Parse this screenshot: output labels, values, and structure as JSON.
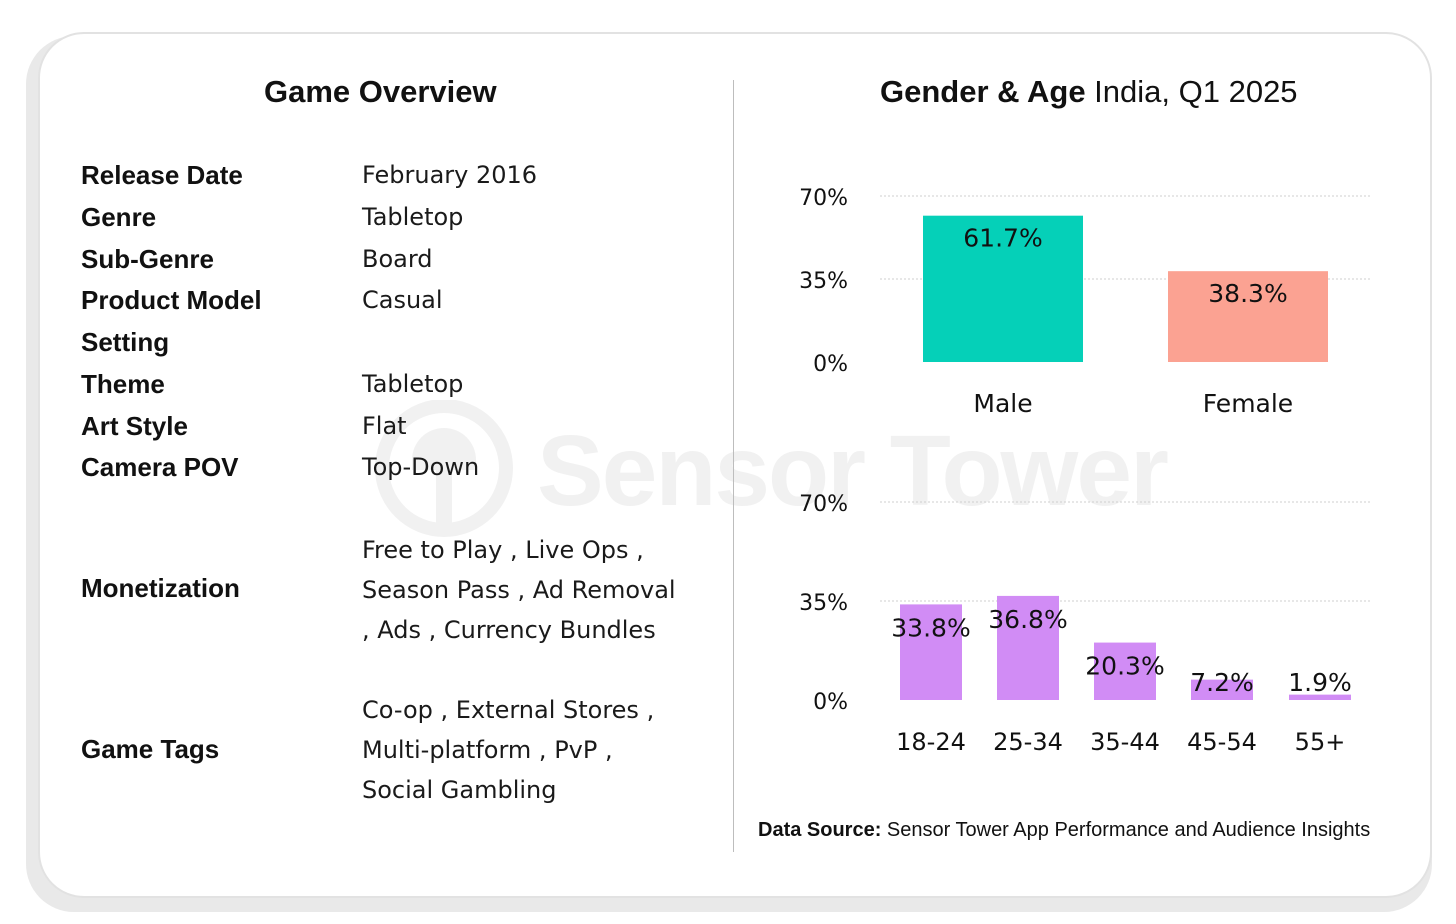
{
  "overview": {
    "title": "Game Overview",
    "rows": [
      {
        "label": "Release Date",
        "value": "February 2016"
      },
      {
        "label": "Genre",
        "value": "Tabletop"
      },
      {
        "label": "Sub-Genre",
        "value": "Board"
      },
      {
        "label": "Product Model",
        "value": "Casual"
      },
      {
        "label": "Setting",
        "value": ""
      },
      {
        "label": "Theme",
        "value": "Tabletop"
      },
      {
        "label": "Art Style",
        "value": "Flat"
      },
      {
        "label": "Camera POV",
        "value": "Top-Down"
      }
    ],
    "monetization": {
      "label": "Monetization",
      "lines": [
        "Free to Play , Live Ops ,",
        "Season Pass , Ad Removal",
        ", Ads , Currency Bundles"
      ]
    },
    "game_tags": {
      "label": "Game Tags",
      "lines": [
        "Co-op , External Stores ,",
        "Multi-platform , PvP ,",
        "Social Gambling"
      ]
    }
  },
  "demographics": {
    "title_bold": "Gender & Age",
    "title_rest": " India, Q1 2025"
  },
  "watermark": "Sensor Tower",
  "source": {
    "label": "Data Source:",
    "text": " Sensor Tower App Performance and Audience Insights"
  },
  "chart_data": [
    {
      "type": "bar",
      "categories": [
        "Male",
        "Female"
      ],
      "values": [
        61.7,
        38.3
      ],
      "data_labels": [
        "61.7%",
        "38.3%"
      ],
      "colors": [
        "#05d0b8",
        "#fba292"
      ],
      "yticks": [
        "70%",
        "35%",
        "0%"
      ],
      "ylim": [
        0,
        70
      ],
      "grid": true
    },
    {
      "type": "bar",
      "categories": [
        "18-24",
        "25-34",
        "35-44",
        "45-54",
        "55+"
      ],
      "values": [
        33.8,
        36.8,
        20.3,
        7.2,
        1.9
      ],
      "data_labels": [
        "33.8%",
        "36.8%",
        "20.3%",
        "7.2%",
        "1.9%"
      ],
      "colors": [
        "#d18cf5",
        "#d18cf5",
        "#d18cf5",
        "#d18cf5",
        "#d18cf5"
      ],
      "yticks": [
        "70%",
        "35%",
        "0%"
      ],
      "ylim": [
        0,
        70
      ],
      "grid": true
    }
  ]
}
